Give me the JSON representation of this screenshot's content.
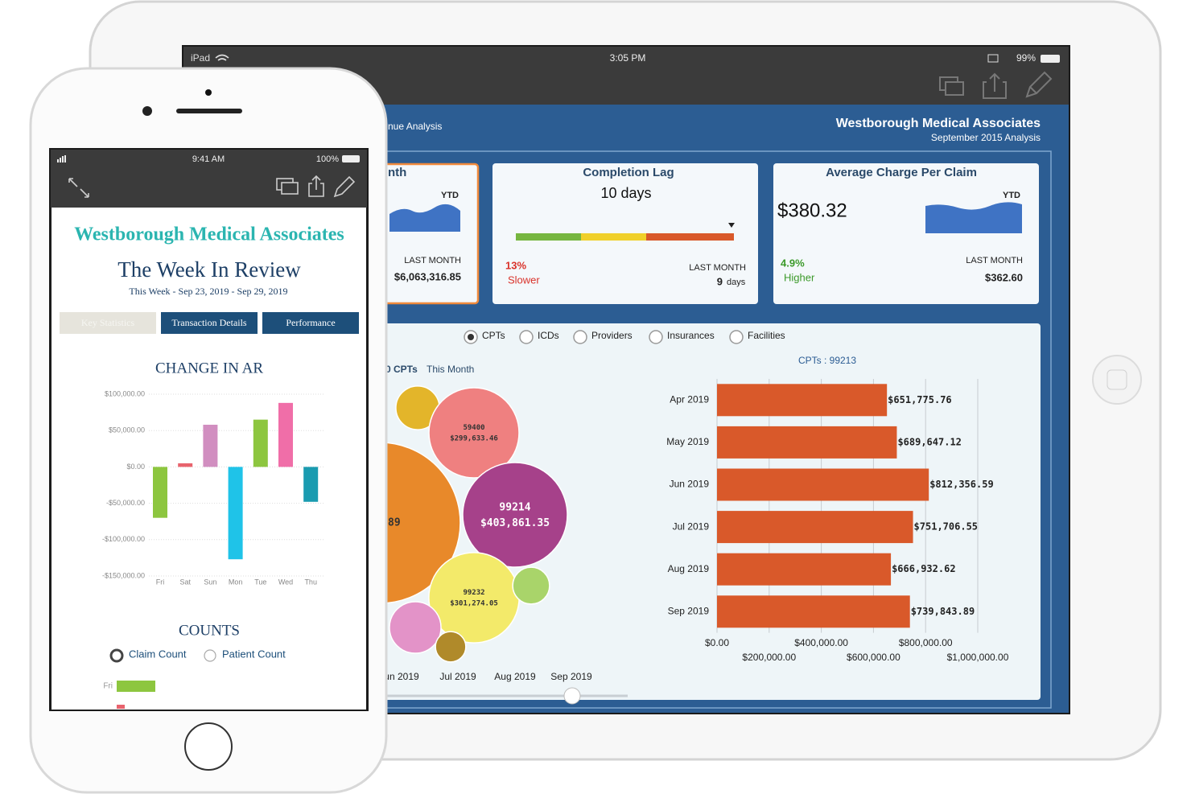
{
  "ipad": {
    "status": {
      "device": "iPad",
      "time": "3:05 PM",
      "battery": "99%"
    },
    "header": {
      "page": "nue Analysis",
      "org": "Westborough Medical Associates",
      "subtitle": "September 2015 Analysis"
    },
    "cards": [
      {
        "title": "nth",
        "period": "YTD",
        "compare_label": "LAST MONTH",
        "compare_value": "$6,063,316.85"
      },
      {
        "title": "Completion Lag",
        "value": "10 days",
        "change": "13%",
        "change_label": "Slower",
        "compare_label": "LAST MONTH",
        "compare_value": "9",
        "compare_unit": "days"
      },
      {
        "title": "Average Charge Per Claim",
        "value": "$380.32",
        "period": "YTD",
        "change": "4.9%",
        "change_label": "Higher",
        "compare_label": "LAST MONTH",
        "compare_value": "$362.60"
      }
    ],
    "filters": [
      "CPTs",
      "ICDs",
      "Providers",
      "Insurances",
      "Facilities"
    ],
    "selected_filter": 0,
    "bubble_chart": {
      "type": "bubble",
      "title_bold": "0 CPTs",
      "title": "This Month",
      "x_labels": [
        "un 2019",
        "Jul 2019",
        "Aug 2019",
        "Sep 2019"
      ],
      "bubbles": [
        {
          "name": "89",
          "value": 955000,
          "color": "#e8892a"
        },
        {
          "value": 70000,
          "color": "#e3b52a"
        },
        {
          "name": "59400",
          "value": 299633.46,
          "value_label": "$299,633.46",
          "color": "#ef8080"
        },
        {
          "name": "99214",
          "value": 403861.35,
          "value_label": "$403,861.35",
          "color": "#a6418a"
        },
        {
          "name": "99232",
          "value": 301274.05,
          "value_label": "$301,274.05",
          "color": "#f3ea6a"
        },
        {
          "value": 50000,
          "color": "#a9d46a"
        },
        {
          "value": 98000,
          "color": "#e393c8"
        },
        {
          "value": 34000,
          "color": "#b08a2a"
        }
      ]
    },
    "bar_chart": {
      "type": "bar",
      "orientation": "horizontal",
      "title": "CPTs : 99213",
      "categories": [
        "Apr 2019",
        "May 2019",
        "Jun 2019",
        "Jul 2019",
        "Aug 2019",
        "Sep 2019"
      ],
      "values": [
        651775.76,
        689647.12,
        812356.59,
        751706.55,
        666932.62,
        739843.89
      ],
      "value_labels": [
        "$651,775.76",
        "$689,647.12",
        "$812,356.59",
        "$751,706.55",
        "$666,932.62",
        "$739,843.89"
      ],
      "color": "#d9592a",
      "xlim": [
        0,
        1000000
      ],
      "xticks": [
        {
          "value": 0,
          "label": "$0.00"
        },
        {
          "value": 200000,
          "label": "$200,000.00"
        },
        {
          "value": 400000,
          "label": "$400,000.00"
        },
        {
          "value": 600000,
          "label": "$600,000.00"
        },
        {
          "value": 800000,
          "label": "$800,000.00"
        },
        {
          "value": 1000000,
          "label": "$1,000,000.00"
        }
      ],
      "grid": true
    }
  },
  "iphone": {
    "status": {
      "time": "9:41 AM",
      "battery": "100%"
    },
    "org": "Westborough Medical Associates",
    "title": "The Week In Review",
    "subtitle": "This Week - Sep 23, 2019 - Sep 29, 2019",
    "tabs": [
      "Key Statistics",
      "Transaction Details",
      "Performance"
    ],
    "selected_tab": 0,
    "change_chart": {
      "type": "bar",
      "title": "CHANGE IN AR",
      "categories": [
        "Fri",
        "Sat",
        "Sun",
        "Mon",
        "Tue",
        "Wed",
        "Thu"
      ],
      "values": [
        -70000,
        5000,
        58000,
        -127000,
        65000,
        88000,
        -48000
      ],
      "colors": [
        "#8dc63f",
        "#e8636d",
        "#d18ec0",
        "#1fc3e8",
        "#8dc63f",
        "#f06ea8",
        "#1a9bb0"
      ],
      "ylim": [
        -150000,
        100000
      ],
      "yticks": [
        {
          "value": 100000,
          "label": "$100,000.00"
        },
        {
          "value": 50000,
          "label": "$50,000.00"
        },
        {
          "value": 0,
          "label": "$0.00"
        },
        {
          "value": -50000,
          "label": "-$50,000.00"
        },
        {
          "value": -100000,
          "label": "-$100,000.00"
        },
        {
          "value": -150000,
          "label": "-$150,000.00"
        }
      ],
      "grid": true
    },
    "counts": {
      "title": "COUNTS",
      "options": [
        "Claim Count",
        "Patient Count"
      ],
      "selected": 0,
      "first_row": "Fri"
    }
  }
}
